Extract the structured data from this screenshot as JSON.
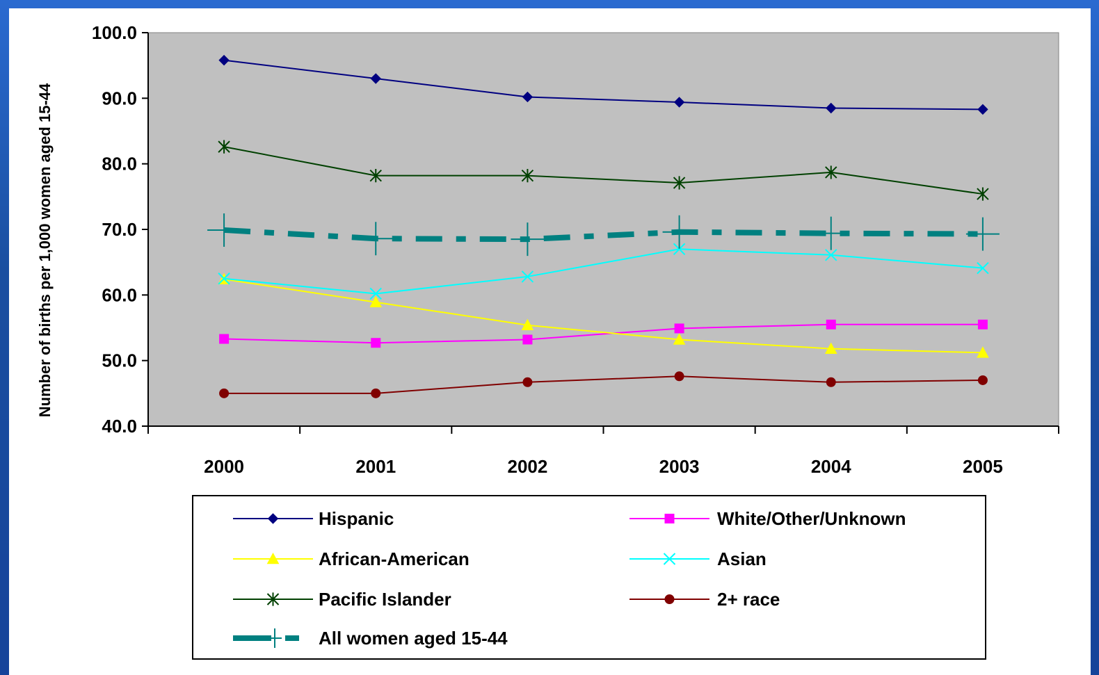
{
  "chart_data": {
    "type": "line",
    "ylabel": "Number of births per 1,000 women  aged 15-44",
    "xlabel": "",
    "categories": [
      "2000",
      "2001",
      "2002",
      "2003",
      "2004",
      "2005"
    ],
    "ylim": [
      40,
      100
    ],
    "yticks": [
      "40.0",
      "50.0",
      "60.0",
      "70.0",
      "80.0",
      "90.0",
      "100.0"
    ],
    "grid": false,
    "legend_placement": "bottom",
    "plot_background": "#c0c0c0",
    "series": [
      {
        "name": "Hispanic",
        "color": "#000080",
        "marker": "diamond",
        "values": [
          95.8,
          93.0,
          90.2,
          89.4,
          88.5,
          88.3
        ]
      },
      {
        "name": "White/Other/Unknown",
        "color": "#ff00ff",
        "marker": "square",
        "values": [
          53.3,
          52.7,
          53.2,
          54.9,
          55.5,
          55.5
        ]
      },
      {
        "name": "African-American",
        "color": "#ffff00",
        "marker": "triangle",
        "values": [
          62.4,
          58.9,
          55.4,
          53.2,
          51.8,
          51.2
        ]
      },
      {
        "name": "Asian",
        "color": "#00ffff",
        "marker": "x",
        "values": [
          62.5,
          60.2,
          62.8,
          67.0,
          66.1,
          64.1
        ]
      },
      {
        "name": "Pacific Islander",
        "color": "#004000",
        "marker": "star",
        "values": [
          82.6,
          78.2,
          78.2,
          77.1,
          78.7,
          75.4
        ]
      },
      {
        "name": "2+ race",
        "color": "#800000",
        "marker": "circle",
        "values": [
          45.0,
          45.0,
          46.7,
          47.6,
          46.7,
          47.0
        ]
      },
      {
        "name": "All women aged 15-44",
        "color": "#008080",
        "marker": "plus",
        "dashed": true,
        "values": [
          69.9,
          68.6,
          68.5,
          69.6,
          69.4,
          69.3
        ]
      }
    ]
  }
}
